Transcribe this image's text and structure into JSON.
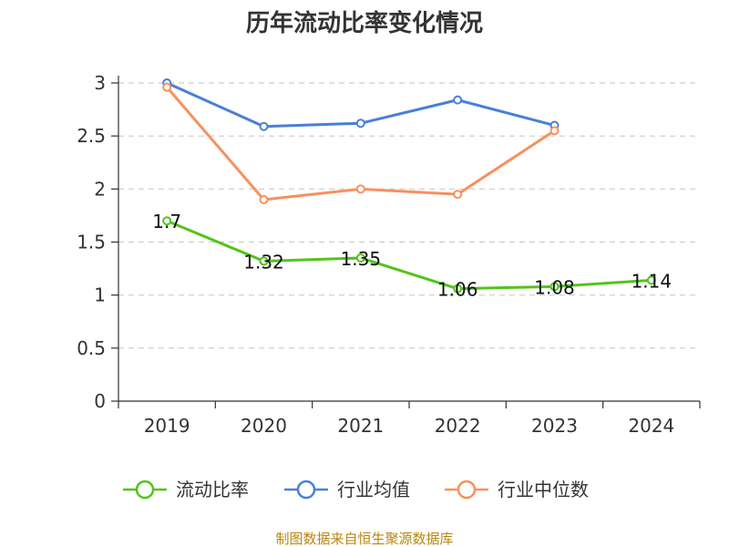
{
  "chart_data": {
    "type": "line",
    "title": "历年流动比率变化情况",
    "xlabel": "",
    "ylabel": "",
    "categories": [
      "2019",
      "2020",
      "2021",
      "2022",
      "2023",
      "2024"
    ],
    "ylim": [
      0,
      3
    ],
    "yticks": [
      "0",
      "0.5",
      "1",
      "1.5",
      "2",
      "2.5",
      "3"
    ],
    "grid": true,
    "legend_position": "bottom",
    "series": [
      {
        "name": "流动比率",
        "color": "#52c41a",
        "values": [
          1.7,
          1.32,
          1.35,
          1.06,
          1.08,
          1.14
        ],
        "labels": [
          "1.7",
          "1.32",
          "1.35",
          "1.06",
          "1.08",
          "1.14"
        ]
      },
      {
        "name": "行业均值",
        "color": "#4a7fd8",
        "values": [
          3.0,
          2.59,
          2.62,
          2.84,
          2.6,
          null
        ]
      },
      {
        "name": "行业中位数",
        "color": "#f7905e",
        "values": [
          2.96,
          1.9,
          2.0,
          1.95,
          2.55,
          null
        ]
      }
    ],
    "source": "制图数据来自恒生聚源数据库"
  }
}
